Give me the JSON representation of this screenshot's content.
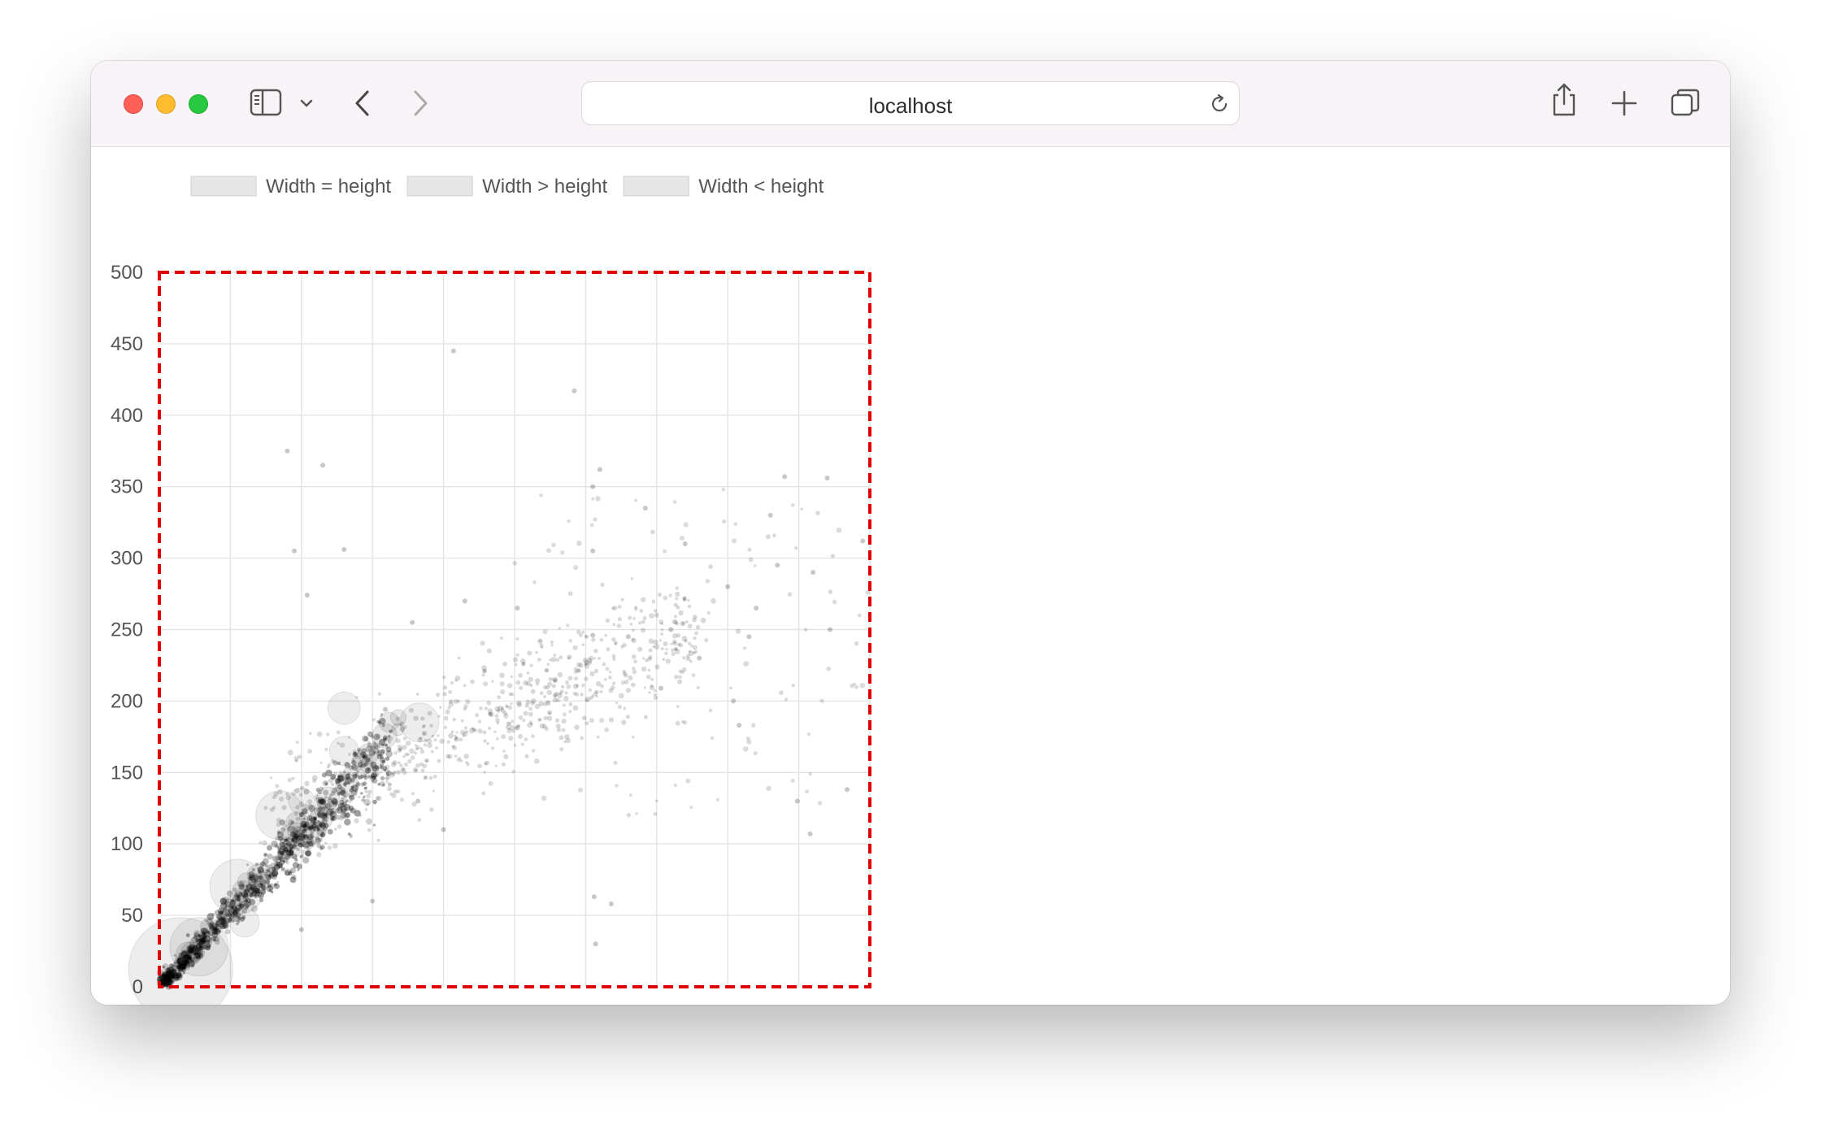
{
  "browser": {
    "url": "localhost",
    "icons": {
      "sidebar": "sidebar-icon",
      "chevron": "chevron-down-icon",
      "back": "back-arrow-icon",
      "forward": "forward-arrow-icon",
      "reload": "reload-icon",
      "share": "share-icon",
      "new_tab": "plus-icon",
      "tabs": "tab-overview-icon"
    },
    "traffic_colors": {
      "close": "#fe5f57",
      "minimize": "#febc2e",
      "maximize": "#28c840"
    }
  },
  "chart_data": {
    "type": "scatter",
    "legend": [
      "Width = height",
      "Width > height",
      "Width < height"
    ],
    "legend_placement": "top-left",
    "xlim": [
      0,
      500
    ],
    "ylim": [
      0,
      500
    ],
    "xticks": [
      "0",
      "50",
      "100",
      "150",
      "200",
      "250",
      "300",
      "350",
      "400",
      "450",
      "500"
    ],
    "yticks": [
      "0",
      "50",
      "100",
      "150",
      "200",
      "250",
      "300",
      "350",
      "400",
      "450",
      "500"
    ],
    "grid": true,
    "highlight_color": "#e00000",
    "point_color": "#000000",
    "clusters": [
      {
        "x": 15,
        "y": 12,
        "r": 64
      },
      {
        "x": 28,
        "y": 28,
        "r": 36
      },
      {
        "x": 55,
        "y": 70,
        "r": 34
      },
      {
        "x": 85,
        "y": 120,
        "r": 30
      },
      {
        "x": 130,
        "y": 195,
        "r": 20
      },
      {
        "x": 183,
        "y": 185,
        "r": 24
      },
      {
        "x": 130,
        "y": 165,
        "r": 18
      },
      {
        "x": 150,
        "y": 155,
        "r": 14
      },
      {
        "x": 60,
        "y": 45,
        "r": 18
      },
      {
        "x": 100,
        "y": 130,
        "r": 16
      }
    ],
    "points": [
      {
        "x": 90,
        "y": 375
      },
      {
        "x": 115,
        "y": 365
      },
      {
        "x": 207,
        "y": 445
      },
      {
        "x": 292,
        "y": 417
      },
      {
        "x": 310,
        "y": 362
      },
      {
        "x": 305,
        "y": 350
      },
      {
        "x": 342,
        "y": 335
      },
      {
        "x": 430,
        "y": 330
      },
      {
        "x": 440,
        "y": 357
      },
      {
        "x": 470,
        "y": 356
      },
      {
        "x": 495,
        "y": 312
      },
      {
        "x": 370,
        "y": 310
      },
      {
        "x": 400,
        "y": 280
      },
      {
        "x": 305,
        "y": 305
      },
      {
        "x": 435,
        "y": 295
      },
      {
        "x": 460,
        "y": 290
      },
      {
        "x": 472,
        "y": 250
      },
      {
        "x": 404,
        "y": 200
      },
      {
        "x": 408,
        "y": 183
      },
      {
        "x": 449,
        "y": 130
      },
      {
        "x": 458,
        "y": 107
      },
      {
        "x": 484,
        "y": 138
      },
      {
        "x": 306,
        "y": 63
      },
      {
        "x": 318,
        "y": 58
      },
      {
        "x": 307,
        "y": 30
      },
      {
        "x": 200,
        "y": 110
      },
      {
        "x": 182,
        "y": 130
      },
      {
        "x": 150,
        "y": 60
      },
      {
        "x": 100,
        "y": 40
      },
      {
        "x": 95,
        "y": 305
      },
      {
        "x": 130,
        "y": 306
      },
      {
        "x": 305,
        "y": 246
      },
      {
        "x": 246,
        "y": 184
      },
      {
        "x": 353,
        "y": 209
      },
      {
        "x": 104,
        "y": 274
      },
      {
        "x": 268,
        "y": 242
      },
      {
        "x": 215,
        "y": 270
      },
      {
        "x": 178,
        "y": 255
      },
      {
        "x": 252,
        "y": 265
      },
      {
        "x": 330,
        "y": 245
      },
      {
        "x": 360,
        "y": 250
      },
      {
        "x": 380,
        "y": 230
      },
      {
        "x": 420,
        "y": 265
      },
      {
        "x": 415,
        "y": 245
      }
    ]
  }
}
